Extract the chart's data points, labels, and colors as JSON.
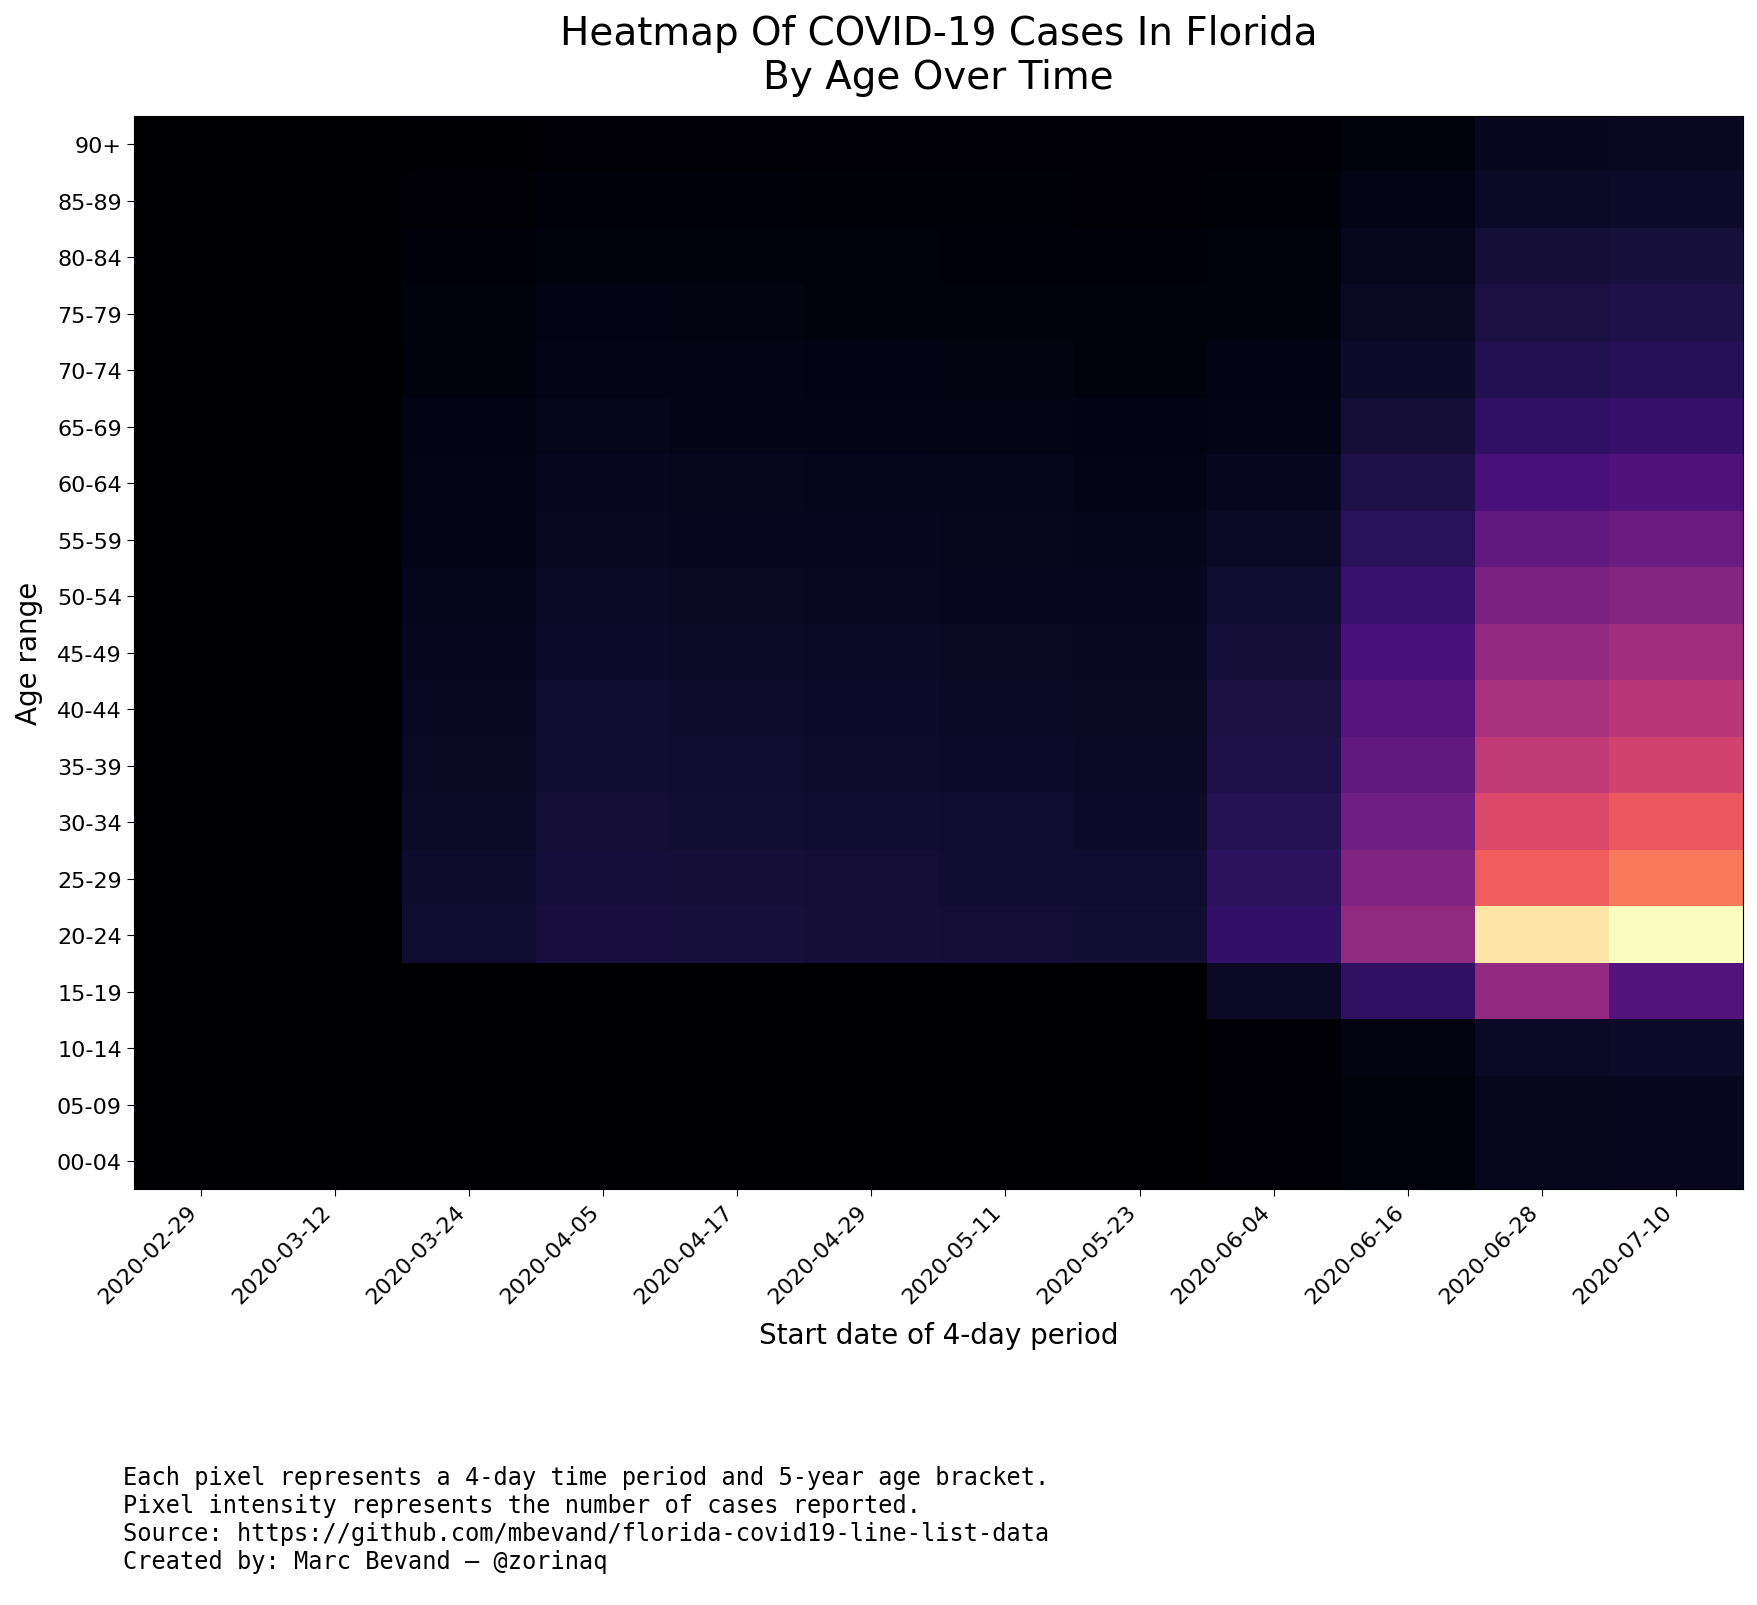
{
  "title": "Heatmap Of COVID-19 Cases In Florida\nBy Age Over Time",
  "xlabel": "Start date of 4-day period",
  "ylabel": "Age range",
  "colormap": "magma",
  "age_groups": [
    "90+",
    "85-89",
    "80-84",
    "75-79",
    "70-74",
    "65-69",
    "60-64",
    "55-59",
    "50-54",
    "45-49",
    "40-44",
    "35-39",
    "30-34",
    "25-29",
    "20-24",
    "15-19",
    "10-14",
    "05-09",
    "00-04"
  ],
  "dates": [
    "2020-02-29",
    "2020-03-12",
    "2020-03-24",
    "2020-04-05",
    "2020-04-17",
    "2020-04-29",
    "2020-05-11",
    "2020-05-23",
    "2020-06-04",
    "2020-06-16",
    "2020-06-28",
    "2020-07-10"
  ],
  "footnote": "Each pixel represents a 4-day time period and 5-year age bracket.\nPixel intensity represents the number of cases reported.\nSource: https://github.com/mbevand/florida-covid19-line-list-data\nCreated by: Marc Bevand — @zorinaq",
  "heatmap_data": [
    [
      0,
      2,
      30,
      60,
      70,
      65,
      60,
      55,
      80,
      180,
      350,
      380
    ],
    [
      0,
      5,
      80,
      130,
      120,
      110,
      100,
      90,
      110,
      240,
      430,
      470
    ],
    [
      0,
      8,
      120,
      180,
      160,
      150,
      130,
      120,
      150,
      330,
      590,
      640
    ],
    [
      0,
      10,
      150,
      210,
      190,
      175,
      160,
      145,
      175,
      390,
      700,
      760
    ],
    [
      0,
      12,
      180,
      250,
      230,
      210,
      190,
      175,
      210,
      460,
      830,
      900
    ],
    [
      0,
      15,
      210,
      290,
      270,
      250,
      230,
      210,
      260,
      570,
      1020,
      1100
    ],
    [
      0,
      18,
      240,
      340,
      320,
      300,
      280,
      260,
      340,
      750,
      1350,
      1460
    ],
    [
      0,
      20,
      270,
      380,
      360,
      340,
      320,
      300,
      420,
      940,
      1700,
      1840
    ],
    [
      0,
      22,
      300,
      420,
      400,
      380,
      360,
      340,
      510,
      1140,
      2050,
      2220
    ],
    [
      0,
      25,
      340,
      460,
      440,
      420,
      400,
      370,
      600,
      1340,
      2400,
      2600
    ],
    [
      0,
      27,
      370,
      500,
      480,
      460,
      430,
      400,
      680,
      1520,
      2720,
      2950
    ],
    [
      0,
      30,
      400,
      540,
      520,
      490,
      460,
      430,
      760,
      1700,
      3050,
      3300
    ],
    [
      0,
      35,
      440,
      580,
      560,
      530,
      500,
      470,
      860,
      1920,
      3450,
      3740
    ],
    [
      0,
      40,
      480,
      620,
      600,
      570,
      540,
      510,
      960,
      2140,
      3850,
      4170
    ],
    [
      0,
      45,
      520,
      660,
      640,
      610,
      580,
      550,
      1060,
      2360,
      5500,
      5800
    ],
    [
      0,
      1,
      4,
      7,
      8,
      9,
      11,
      13,
      420,
      1000,
      2400,
      1500
    ],
    [
      0,
      0,
      2,
      4,
      5,
      6,
      8,
      10,
      80,
      200,
      420,
      460
    ],
    [
      0,
      0,
      2,
      3,
      4,
      5,
      6,
      8,
      60,
      150,
      320,
      350
    ],
    [
      0,
      0,
      2,
      3,
      4,
      5,
      6,
      8,
      60,
      150,
      320,
      350
    ]
  ],
  "vmax": 5800,
  "title_fontsize": 28,
  "label_fontsize": 20,
  "tick_fontsize": 16,
  "footnote_fontsize": 17
}
